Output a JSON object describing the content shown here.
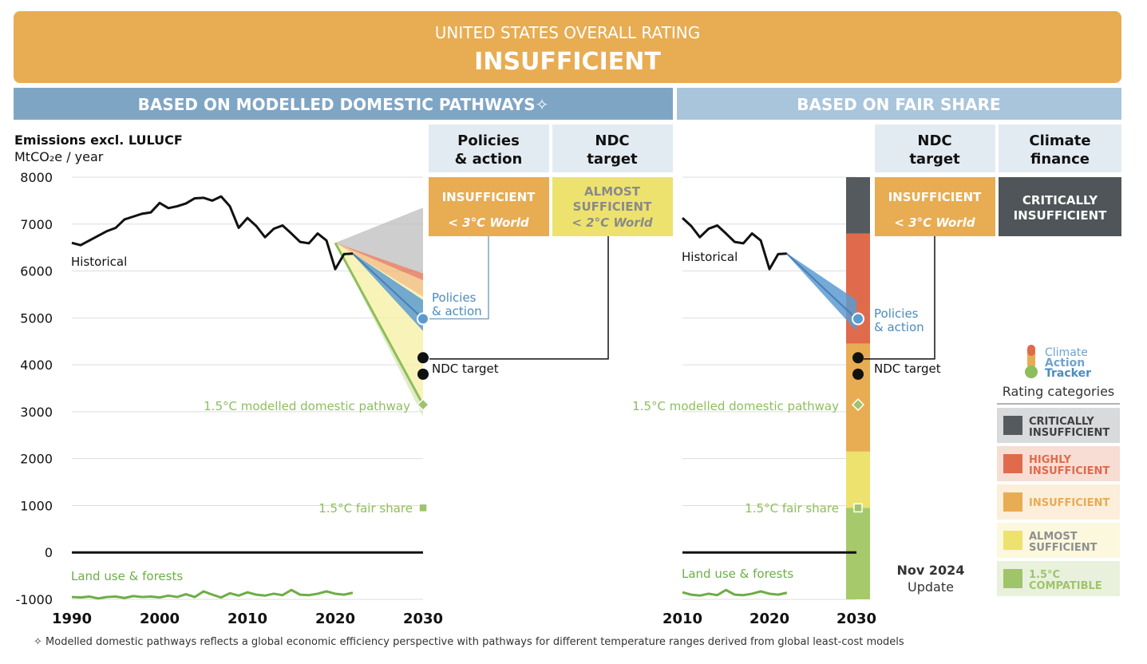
{
  "header": {
    "subtitle": "UNITED STATES OVERALL RATING",
    "title": "INSUFFICIENT",
    "color": "#E8AC52"
  },
  "sections": {
    "left": "BASED ON MODELLED DOMESTIC PATHWAYS✧",
    "right": "BASED ON FAIR SHARE"
  },
  "chart_title": "Emissions excl. LULUCF",
  "chart_unit": "MtCO₂e / year",
  "columns": {
    "policies": {
      "heading_1": "Policies",
      "heading_2": "& action",
      "rating_1": "INSUFFICIENT",
      "rating_2": "< 3°C World"
    },
    "ndc_left": {
      "heading_1": "NDC",
      "heading_2": "target",
      "rating_1": "ALMOST",
      "rating_2": "SUFFICIENT",
      "rating_3": "< 2°C World"
    },
    "ndc_right": {
      "heading_1": "NDC",
      "heading_2": "target",
      "rating_1": "INSUFFICIENT",
      "rating_2": "< 3°C World"
    },
    "finance": {
      "heading_1": "Climate",
      "heading_2": "finance",
      "rating_1": "CRITICALLY",
      "rating_2": "INSUFFICIENT"
    }
  },
  "labels": {
    "historical": "Historical",
    "policies_1": "Policies",
    "policies_2": "& action",
    "ndc_target": "NDC target",
    "pathway": "1.5°C modelled domestic pathway",
    "fair_share": "1.5°C fair share",
    "land_use": "Land use & forests"
  },
  "update": {
    "line1": "Nov 2024",
    "line2": "Update"
  },
  "legend": {
    "logo_1": "Climate",
    "logo_2": "Action",
    "logo_3": "Tracker",
    "title": "Rating categories",
    "items": [
      {
        "line1": "CRITICALLY",
        "line2": "INSUFFICIENT",
        "color": "#555a5e",
        "bg": "#d9dadb",
        "text": "#3d4144"
      },
      {
        "line1": "HIGHLY",
        "line2": "INSUFFICIENT",
        "color": "#E06B4C",
        "bg": "#f8ddd4",
        "text": "#E06B4C"
      },
      {
        "line1": "INSUFFICIENT",
        "line2": "",
        "color": "#E8AC52",
        "bg": "#fbeedb",
        "text": "#E8AC52"
      },
      {
        "line1": "ALMOST",
        "line2": "SUFFICIENT",
        "color": "#EDE26E",
        "bg": "#fbf8de",
        "text": "#8f8f8f"
      },
      {
        "line1": "1.5°C",
        "line2": "COMPATIBLE",
        "color": "#9FC46A",
        "bg": "#e9f1dd",
        "text": "#9FC46A"
      }
    ]
  },
  "footnote": "✧  Modelled domestic pathways reflects a global economic efficiency perspective with pathways for different temperature ranges derived from global least-cost models",
  "colors": {
    "section_left": "#7FA5C5",
    "section_right": "#A9C5DB",
    "column_head": "#E3EBF2",
    "policies_blue": "#4A8CC0",
    "pathway_green": "#8DBE5C",
    "almost": "#EDE26E",
    "critical": "#4F5559"
  },
  "chart_data": {
    "type": "line",
    "ylim": [
      -1000,
      8000
    ],
    "yticks": [
      8000,
      7000,
      6000,
      5000,
      4000,
      3000,
      2000,
      1000,
      0,
      -1000
    ],
    "left_xlim": [
      1990,
      2030
    ],
    "left_xticks": [
      1990,
      2000,
      2010,
      2020,
      2030
    ],
    "right_xlim": [
      2010,
      2030
    ],
    "right_xticks": [
      2010,
      2020,
      2030
    ],
    "historical": {
      "x": [
        1990,
        1991,
        1992,
        1993,
        1994,
        1995,
        1996,
        1997,
        1998,
        1999,
        2000,
        2001,
        2002,
        2003,
        2004,
        2005,
        2006,
        2007,
        2008,
        2009,
        2010,
        2011,
        2012,
        2013,
        2014,
        2015,
        2016,
        2017,
        2018,
        2019,
        2020,
        2021,
        2022
      ],
      "y": [
        6600,
        6550,
        6650,
        6750,
        6850,
        6920,
        7100,
        7160,
        7220,
        7250,
        7450,
        7340,
        7380,
        7440,
        7550,
        7560,
        7500,
        7590,
        7380,
        6920,
        7130,
        6960,
        6720,
        6900,
        6970,
        6800,
        6620,
        6590,
        6800,
        6650,
        6040,
        6360,
        6370
      ]
    },
    "lulucf": {
      "x": [
        1990,
        1991,
        1992,
        1993,
        1994,
        1995,
        1996,
        1997,
        1998,
        1999,
        2000,
        2001,
        2002,
        2003,
        2004,
        2005,
        2006,
        2007,
        2008,
        2009,
        2010,
        2011,
        2012,
        2013,
        2014,
        2015,
        2016,
        2017,
        2018,
        2019,
        2020,
        2021,
        2022
      ],
      "y": [
        -950,
        -960,
        -940,
        -980,
        -950,
        -940,
        -970,
        -930,
        -950,
        -940,
        -960,
        -920,
        -950,
        -890,
        -950,
        -830,
        -900,
        -960,
        -870,
        -920,
        -850,
        -900,
        -920,
        -880,
        -910,
        -800,
        -900,
        -910,
        -880,
        -830,
        -880,
        -900,
        -860
      ]
    },
    "policies_range": {
      "x": [
        2022,
        2030
      ],
      "upper": [
        6380,
        5380
      ],
      "lower": [
        6350,
        4720
      ]
    },
    "policies_central": {
      "x": [
        2022,
        2030
      ],
      "y": [
        6370,
        4980
      ]
    },
    "policies_2030": 4980,
    "ndc_target_2030": [
      4150,
      3800
    ],
    "pathway_2030": 3150,
    "fair_share_2030": 950,
    "left_bands": [
      {
        "name": "critically insufficient",
        "color": "#bdbdbd",
        "upper": [
          6600,
          7350
        ],
        "lower": [
          6600,
          5950
        ]
      },
      {
        "name": "highly insufficient",
        "color": "#E06B4C",
        "upper": [
          6600,
          5950
        ],
        "lower": [
          6600,
          5800
        ]
      },
      {
        "name": "insufficient",
        "color": "#F0B870",
        "upper": [
          6600,
          5800
        ],
        "lower": [
          6600,
          5450
        ]
      },
      {
        "name": "almost sufficient",
        "color": "#F6EFA0",
        "upper": [
          6600,
          5450
        ],
        "lower": [
          6600,
          3150
        ]
      },
      {
        "name": "1.5C compatible",
        "color": "#D7E6B5",
        "upper": [
          6600,
          3150
        ],
        "lower": [
          6600,
          2900
        ]
      }
    ],
    "fair_share_bar": [
      {
        "name": "critically insufficient",
        "color": "#555a5e",
        "from": 6800,
        "to": 8000
      },
      {
        "name": "highly insufficient",
        "color": "#E06B4C",
        "from": 4450,
        "to": 6800
      },
      {
        "name": "insufficient",
        "color": "#E8AC52",
        "from": 2150,
        "to": 4450
      },
      {
        "name": "almost sufficient",
        "color": "#EDE26E",
        "from": 950,
        "to": 2150
      },
      {
        "name": "1.5C compatible",
        "color": "#A6C96C",
        "from": -1000,
        "to": 950
      }
    ]
  }
}
